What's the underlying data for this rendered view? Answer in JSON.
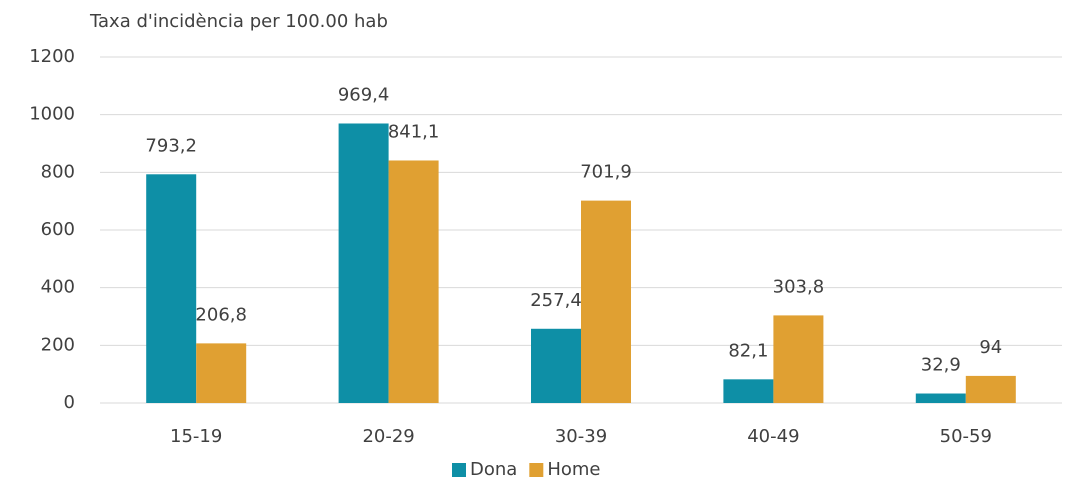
{
  "chart_data": {
    "type": "bar",
    "title": "Taxa d'incidència per 100.00 hab",
    "categories": [
      "15-19",
      "20-29",
      "30-39",
      "40-49",
      "50-59"
    ],
    "series": [
      {
        "name": "Dona",
        "color": "#0e8fa6",
        "values": [
          793.2,
          969.4,
          257.4,
          82.1,
          32.9
        ],
        "value_labels": [
          "793,2",
          "969,4",
          "257,4",
          "82,1",
          "32,9"
        ]
      },
      {
        "name": "Home",
        "color": "#e0a032",
        "values": [
          206.8,
          841.1,
          701.9,
          303.8,
          94
        ],
        "value_labels": [
          "206,8",
          "841,1",
          "701,9",
          "303,8",
          "94"
        ]
      }
    ],
    "ylim": [
      0,
      1200
    ],
    "yticks": [
      0,
      200,
      400,
      600,
      800,
      1000,
      1200
    ],
    "grid": true,
    "legend": "bottom"
  }
}
